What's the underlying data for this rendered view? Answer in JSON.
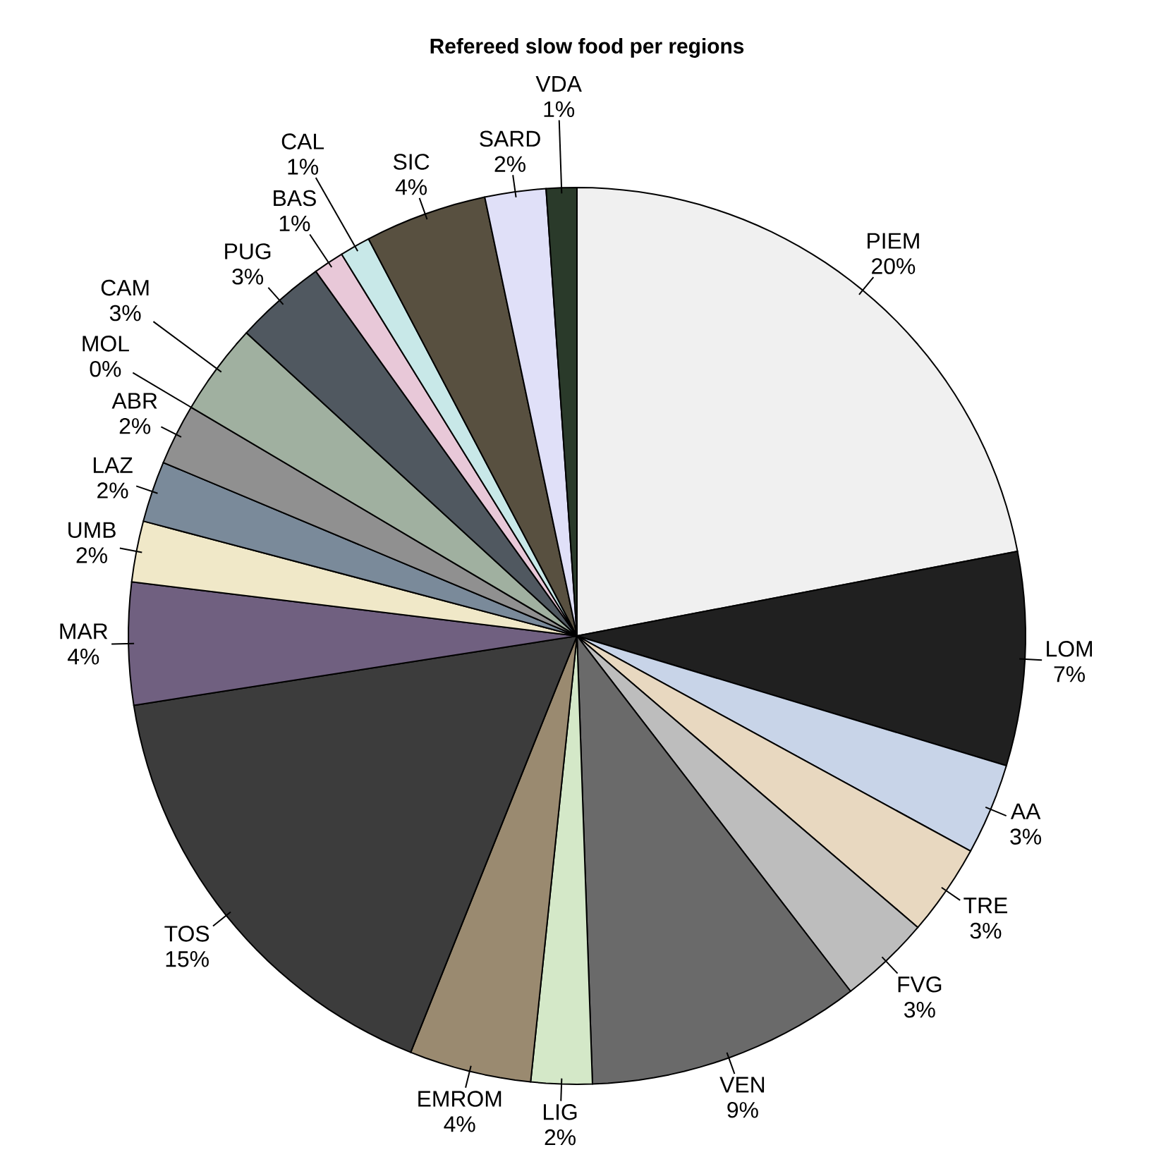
{
  "chart_data": {
    "type": "pie",
    "title": "Refereed slow food per regions",
    "categories": [
      "PIEM",
      "LOM",
      "AA",
      "TRE",
      "FVG",
      "VEN",
      "LIG",
      "EMROM",
      "TOS",
      "MAR",
      "UMB",
      "LAZ",
      "ABR",
      "MOL",
      "CAM",
      "PUG",
      "BAS",
      "CAL",
      "SIC",
      "SARD",
      "VDA"
    ],
    "values": [
      20,
      7,
      3,
      3,
      3,
      9,
      2,
      4,
      15,
      4,
      2,
      2,
      2,
      0,
      3,
      3,
      1,
      1,
      4,
      2,
      1
    ],
    "value_labels": [
      "20%",
      "7%",
      "3%",
      "3%",
      "3%",
      "9%",
      "2%",
      "4%",
      "15%",
      "4%",
      "2%",
      "2%",
      "2%",
      "0%",
      "3%",
      "3%",
      "1%",
      "1%",
      "4%",
      "2%",
      "1%"
    ],
    "colors": [
      "#f0f0f0",
      "#202020",
      "#c8d4e8",
      "#e8d8c0",
      "#bdbdbd",
      "#6a6a6a",
      "#d4e8c8",
      "#9a8a70",
      "#3c3c3c",
      "#706080",
      "#f0e8c8",
      "#7a8a9a",
      "#909090",
      "#000000",
      "#a0b0a0",
      "#505860",
      "#e8c8d8",
      "#c8e8e8",
      "#585040",
      "#e0e0f8",
      "#2a3a2a"
    ]
  }
}
